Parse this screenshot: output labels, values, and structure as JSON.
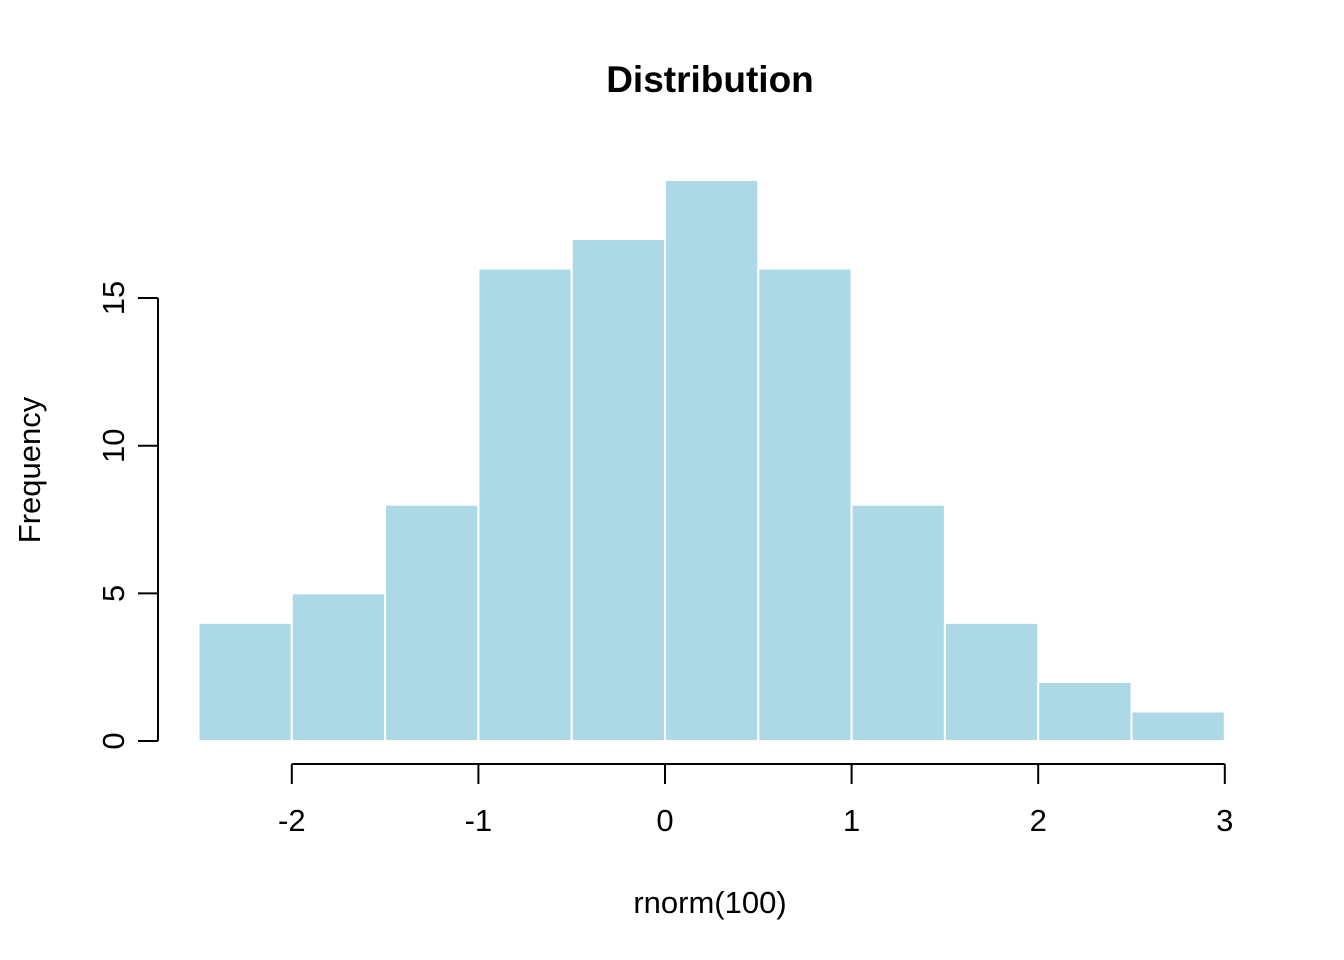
{
  "chart_data": {
    "type": "bar",
    "subtype": "histogram",
    "title": "Distribution",
    "xlabel": "rnorm(100)",
    "ylabel": "Frequency",
    "breaks": [
      -2.5,
      -2,
      -1.5,
      -1,
      -0.5,
      0,
      0.5,
      1,
      1.5,
      2,
      2.5,
      3
    ],
    "counts": [
      4,
      5,
      8,
      16,
      17,
      19,
      16,
      8,
      4,
      2,
      1
    ],
    "x_ticks": [
      -2,
      -1,
      0,
      1,
      2,
      3
    ],
    "x_tick_labels": [
      "-2",
      "-1",
      "0",
      "1",
      "2",
      "3"
    ],
    "y_ticks": [
      0,
      5,
      10,
      15
    ],
    "y_tick_labels": [
      "0",
      "5",
      "10",
      "15"
    ],
    "xlim": [
      -2.5,
      3
    ],
    "ylim": [
      0,
      19
    ],
    "grid": false,
    "legend": "none",
    "colors": {
      "bar_fill": "#ADD8E6",
      "bar_border": "#FFFFFF",
      "axis": "#000000",
      "text": "#000000",
      "background": "#FFFFFF"
    }
  }
}
